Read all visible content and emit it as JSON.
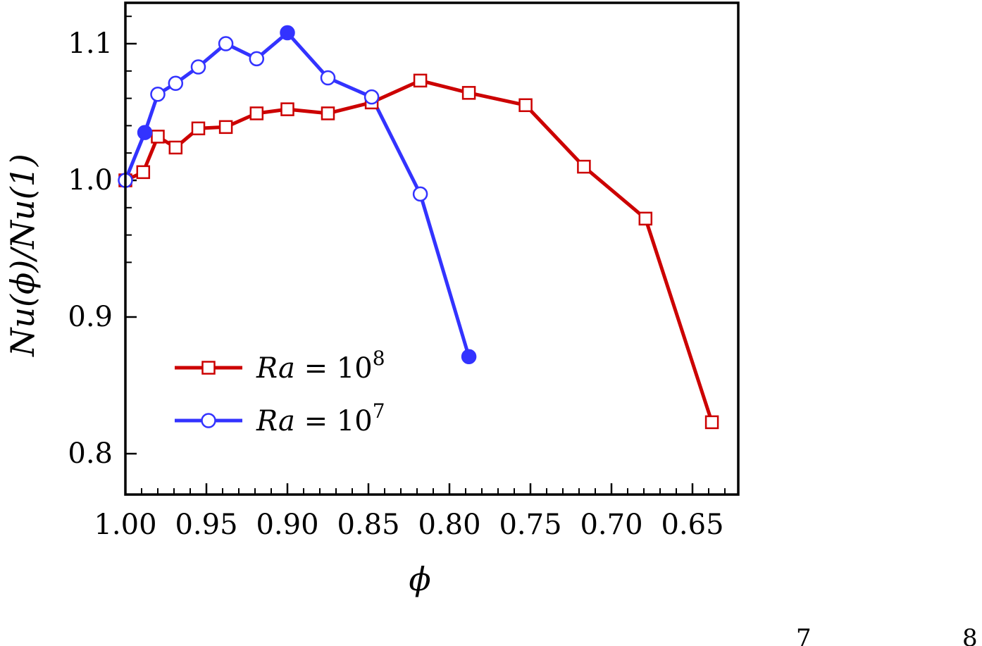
{
  "chart_data": {
    "type": "line",
    "xlabel": "ϕ",
    "ylabel": "Nu(ϕ)/Nu(1)",
    "xlim": [
      1.0,
      0.62
    ],
    "ylim": [
      0.77,
      1.13
    ],
    "x_reversed": true,
    "x_ticks": [
      1.0,
      0.95,
      0.9,
      0.85,
      0.8,
      0.75,
      0.7,
      0.65
    ],
    "x_tick_labels": [
      "1.00",
      "0.95",
      "0.90",
      "0.85",
      "0.80",
      "0.75",
      "0.70",
      "0.65"
    ],
    "y_ticks": [
      0.8,
      0.9,
      1.0,
      1.1
    ],
    "y_tick_labels": [
      "0.8",
      "0.9",
      "1.0",
      "1.1"
    ],
    "grid": false,
    "legend_position": "lower-left",
    "series": [
      {
        "name": "Ra = 10^8",
        "label_base": "Ra",
        "label_eq": " = 10",
        "label_exp": "8",
        "color": "#cc0000",
        "marker": "square-open",
        "x": [
          1.0,
          0.989,
          0.98,
          0.969,
          0.955,
          0.938,
          0.919,
          0.9,
          0.875,
          0.848,
          0.818,
          0.788,
          0.753,
          0.717,
          0.679,
          0.638
        ],
        "y": [
          1.0,
          1.006,
          1.032,
          1.024,
          1.038,
          1.039,
          1.049,
          1.052,
          1.049,
          1.057,
          1.073,
          1.064,
          1.055,
          1.01,
          0.972,
          0.823
        ],
        "filled": [
          false,
          false,
          false,
          false,
          false,
          false,
          false,
          false,
          false,
          false,
          false,
          false,
          false,
          false,
          false,
          false
        ]
      },
      {
        "name": "Ra = 10^7",
        "label_base": "Ra",
        "label_eq": " = 10",
        "label_exp": "7",
        "color": "#3333ff",
        "marker": "circle-open",
        "x": [
          1.0,
          0.988,
          0.98,
          0.969,
          0.955,
          0.938,
          0.919,
          0.9,
          0.875,
          0.848,
          0.818,
          0.788
        ],
        "y": [
          1.0,
          1.035,
          1.063,
          1.071,
          1.083,
          1.1,
          1.089,
          1.108,
          1.075,
          1.061,
          0.99,
          0.871
        ],
        "filled": [
          false,
          true,
          false,
          false,
          false,
          false,
          false,
          true,
          false,
          false,
          false,
          true
        ]
      }
    ]
  },
  "edge_fragments": [
    "7",
    "8"
  ]
}
